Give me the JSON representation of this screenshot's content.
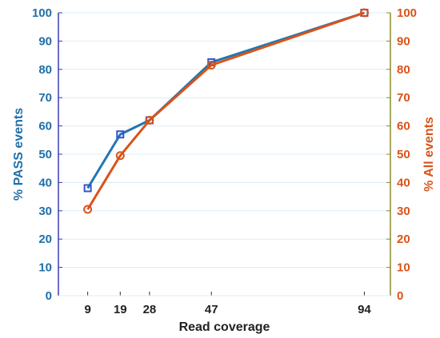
{
  "chart_data": {
    "type": "line",
    "xlabel": "Read coverage",
    "ylabel_left": "% PASS events",
    "ylabel_right": "% All events",
    "x": [
      9,
      19,
      28,
      47,
      94
    ],
    "x_tick_labels": [
      "9",
      "19",
      "28",
      "47",
      "94"
    ],
    "xlim": [
      0,
      102
    ],
    "ylim": [
      0,
      100
    ],
    "y_ticks": [
      0,
      10,
      20,
      30,
      40,
      50,
      60,
      70,
      80,
      90,
      100
    ],
    "grid": "horizontal",
    "series": [
      {
        "values": [
          38,
          57,
          62,
          82.5,
          100
        ],
        "axis": "left",
        "marker": "square",
        "color": "#1f77b4",
        "marker_color": "#3355cc"
      },
      {
        "values": [
          30.5,
          49.5,
          62,
          81.5,
          100
        ],
        "axis": "right",
        "marker": "circle",
        "color": "#d95319",
        "marker_color": "#d95319"
      }
    ],
    "colors": {
      "left_axis": "#1f6fa8",
      "right_axis": "#d95319",
      "left_axis_line": "#3a3ab8",
      "right_axis_line": "#8a8a2a",
      "grid": "#dcecf5"
    }
  }
}
